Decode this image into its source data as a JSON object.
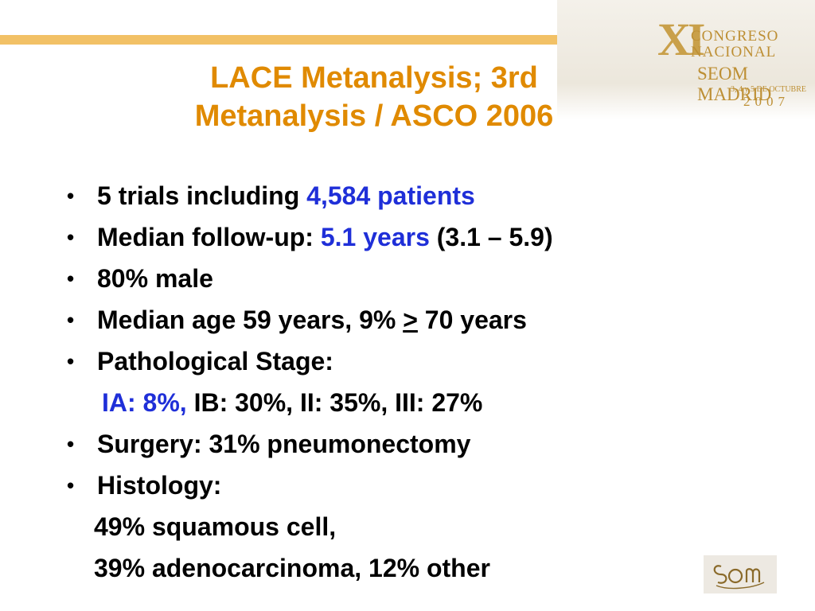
{
  "slide": {
    "title_lines": [
      "LACE Metanalysis; 3rd",
      "Metanalysis / ASCO 2006"
    ],
    "bullets": {
      "b1": {
        "prefix": "5 trials including ",
        "highlight": "4,584 patients"
      },
      "b2": {
        "prefix": "Median follow-up: ",
        "highlight": "5.1 years",
        "suffix": " (3.1 – 5.9)"
      },
      "b3": {
        "text": "80% male"
      },
      "b4": {
        "prefix": "Median age 59 years, 9% ",
        "symbol": ">",
        "suffix": " 70 years"
      },
      "b5": {
        "text": "Pathological Stage:"
      },
      "b5_sub": {
        "highlight": "IA: 8%,",
        "rest": " IB: 30%, II: 35%, III: 27%"
      },
      "b6": {
        "text": "Surgery: 31% pneumonectomy"
      },
      "b7": {
        "text": "Histology:"
      },
      "b7_sub1": "49% squamous cell,",
      "b7_sub2": "39% adenocarcinoma, 12% other"
    },
    "bullet_char": "•"
  },
  "congress_logo": {
    "roman": "XI",
    "line1": "CONGRESO",
    "line2": "NACIONAL",
    "seom": "SEOM MADRID",
    "dates": "3, 4 y 5 DE OCTUBRE",
    "year": "2007"
  },
  "colors": {
    "title": "#e08a00",
    "highlight": "#1f2fd8",
    "rule": "#f2c166",
    "logo_gold": "#bd8f34"
  }
}
